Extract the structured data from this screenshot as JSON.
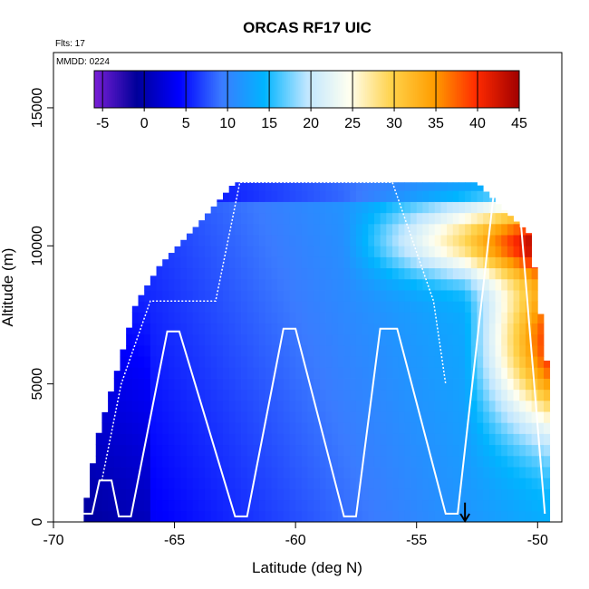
{
  "chart_data": {
    "type": "heatmap",
    "title": "ORCAS RF17 UIC",
    "flights_label": "Flts: 17",
    "date_label": "MMDD: 0224",
    "xlabel": "Latitude (deg N)",
    "ylabel": "Altitude (m)",
    "xlim": [
      -70,
      -49
    ],
    "ylim": [
      0,
      17000
    ],
    "x_ticks": [
      -70,
      -65,
      -60,
      -55,
      -50
    ],
    "x_tick_labels": [
      "-70",
      "-65",
      "-60",
      "-55",
      "-50"
    ],
    "y_ticks": [
      0,
      5000,
      10000,
      15000
    ],
    "y_tick_labels": [
      "0",
      "5000",
      "10000",
      "15000"
    ],
    "colorbar": {
      "placement": "top-inside",
      "range": [
        -6,
        45
      ],
      "ticks": [
        -5,
        0,
        5,
        10,
        15,
        20,
        25,
        30,
        35,
        40,
        45
      ],
      "tick_labels": [
        "-5",
        "0",
        "5",
        "10",
        "15",
        "20",
        "25",
        "30",
        "35",
        "40",
        "45"
      ],
      "colors": [
        "#7a1fd6",
        "#00009a",
        "#0000ff",
        "#3b7bff",
        "#00b4ff",
        "#bfe6ff",
        "#fffff0",
        "#ffd24a",
        "#ff9d00",
        "#ff2a00",
        "#a00000"
      ]
    },
    "flight_track_color": "#ffffff",
    "flight_track": [
      [
        -68.8,
        300
      ],
      [
        -68.4,
        300
      ],
      [
        -68.1,
        1500
      ],
      [
        -67.6,
        1500
      ],
      [
        -67.3,
        200
      ],
      [
        -66.8,
        200
      ],
      [
        -65.3,
        6900
      ],
      [
        -64.8,
        6900
      ],
      [
        -62.5,
        200
      ],
      [
        -62.0,
        200
      ],
      [
        -60.5,
        7000
      ],
      [
        -60.0,
        7000
      ],
      [
        -58.0,
        200
      ],
      [
        -57.5,
        200
      ],
      [
        -56.5,
        7000
      ],
      [
        -55.8,
        7000
      ],
      [
        -53.8,
        300
      ],
      [
        -53.3,
        300
      ],
      [
        -51.8,
        12000
      ],
      [
        -50.8,
        12000
      ],
      [
        -49.7,
        300
      ]
    ],
    "flight_track_2": [
      [
        -68.0,
        1500
      ],
      [
        -67.2,
        5000
      ],
      [
        -66.0,
        8000
      ],
      [
        -63.3,
        8000
      ],
      [
        -62.3,
        12300
      ],
      [
        -56.0,
        12300
      ],
      [
        -54.3,
        8000
      ],
      [
        -53.8,
        5000
      ]
    ],
    "marker": {
      "x": -53.0,
      "label": "arrow"
    }
  }
}
